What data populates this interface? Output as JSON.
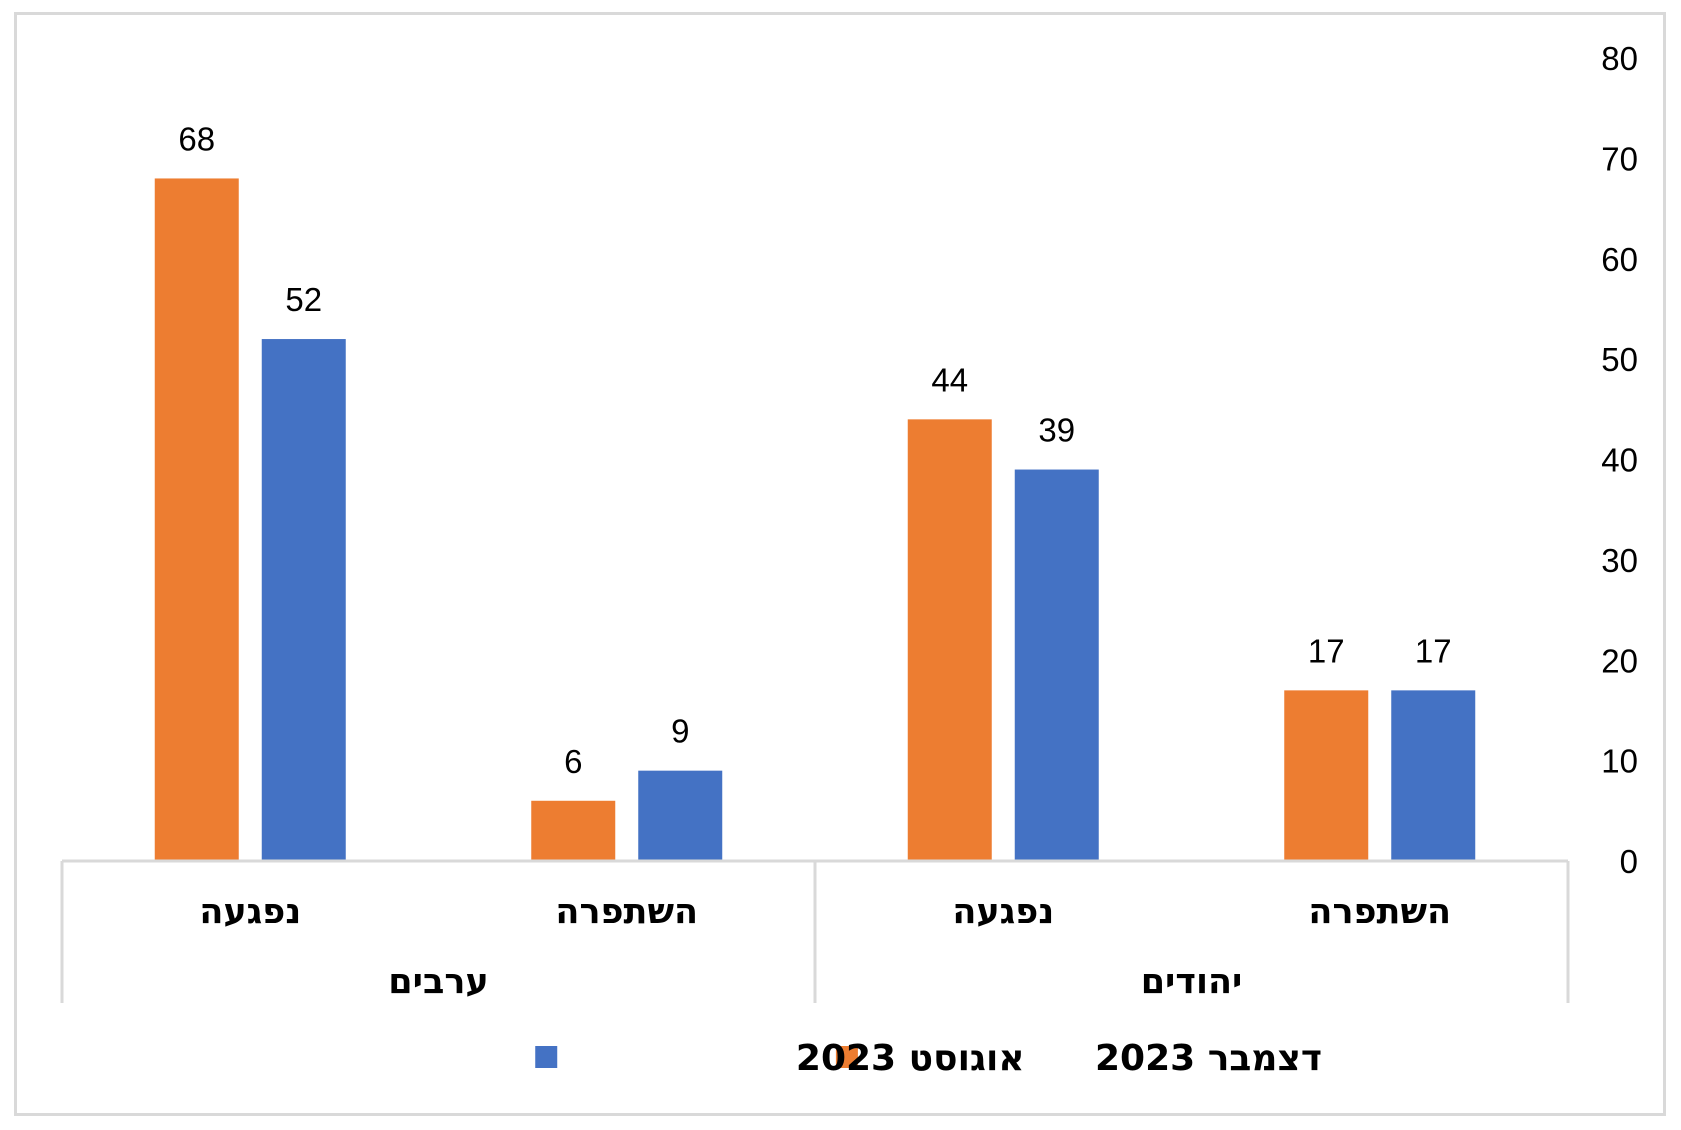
{
  "chart_data": {
    "type": "bar",
    "groups": [
      {
        "name": "ערבים",
        "categories": [
          "נפגעה",
          "השתפרה"
        ]
      },
      {
        "name": "יהודים",
        "categories": [
          "נפגעה",
          "השתפרה"
        ]
      }
    ],
    "categories": [
      "נפגעה",
      "השתפרה",
      "נפגעה",
      "השתפרה"
    ],
    "series": [
      {
        "name": "דצמבר 2023",
        "color": "#ed7d31",
        "values": [
          68,
          6,
          44,
          17
        ]
      },
      {
        "name": "אוגוסט 2023",
        "color": "#4472c4",
        "values": [
          52,
          9,
          39,
          17
        ]
      }
    ],
    "ylim": [
      0,
      80
    ],
    "yticks": [
      0,
      10,
      20,
      30,
      40,
      50,
      60,
      70,
      80
    ],
    "y_axis_position": "right",
    "grid": false,
    "legend_position": "bottom",
    "data_labels": true,
    "title": "",
    "xlabel": "",
    "ylabel": ""
  }
}
